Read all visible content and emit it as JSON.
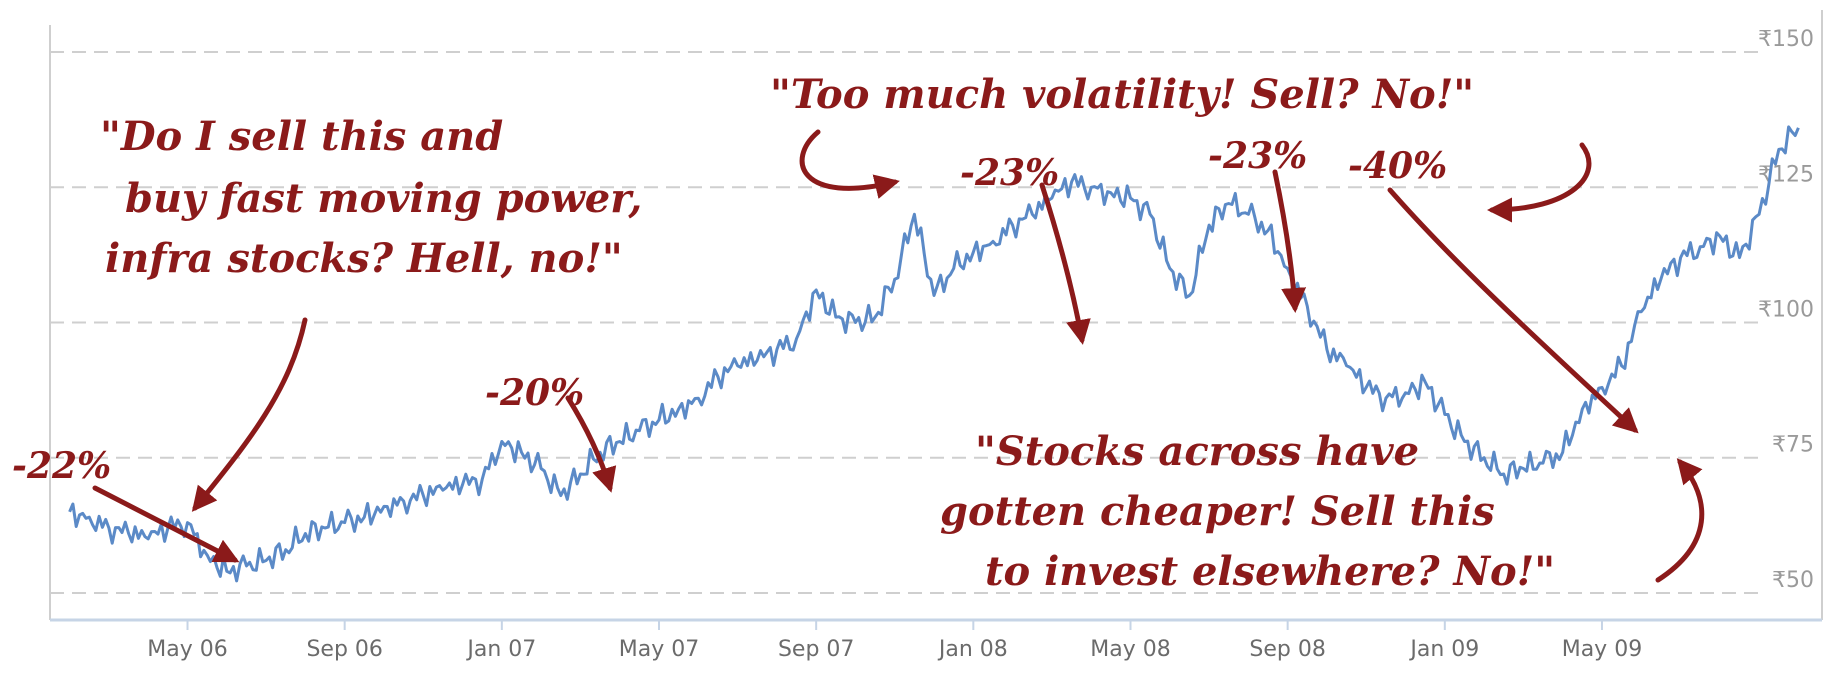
{
  "chart_data": {
    "type": "line",
    "title": "",
    "xlabel": "",
    "ylabel": "",
    "ylim": [
      45,
      155
    ],
    "y_ticks": [
      "₹50",
      "₹75",
      "₹100",
      "₹125",
      "₹150"
    ],
    "y_tick_values": [
      50,
      75,
      100,
      125,
      150
    ],
    "x_ticks": [
      "May 06",
      "Sep 06",
      "Jan 07",
      "May 07",
      "Sep 07",
      "Jan 08",
      "May 08",
      "Sep 08",
      "Jan 09",
      "May 09"
    ],
    "x_tick_months": [
      4,
      8,
      12,
      16,
      20,
      24,
      28,
      32,
      36,
      40
    ],
    "grid": "horizontal dashed",
    "line_color": "#5b8ac7",
    "annotation_color": "#8b1a1a",
    "series": [
      {
        "x_months": [
          1,
          1.5,
          2,
          2.5,
          3,
          3.5,
          4,
          4.5,
          5,
          5.5,
          6,
          6.5,
          7,
          7.5,
          8,
          8.5,
          9,
          9.5,
          10,
          10.5,
          11,
          11.5,
          12,
          12.5,
          13,
          13.5,
          14,
          14.5,
          15,
          15.5,
          16,
          16.5,
          17,
          17.5,
          18,
          18.5,
          19,
          19.5,
          20,
          20.5,
          21,
          21.5,
          22,
          22.5,
          23,
          23.5,
          24,
          24.5,
          25,
          25.5,
          26,
          26.5,
          27,
          27.5,
          28,
          28.5,
          29,
          29.5,
          30,
          30.5,
          31,
          31.5,
          32,
          32.5,
          33,
          33.5,
          34,
          34.5,
          35,
          35.5,
          36,
          36.5,
          37,
          37.5,
          38,
          38.5,
          39,
          39.5,
          40,
          40.5,
          41,
          41.5,
          42,
          42.5,
          43,
          43.5,
          44,
          44.5,
          45
        ],
        "values": [
          65,
          64,
          62,
          61,
          60,
          62,
          63,
          57,
          54,
          55,
          56,
          58,
          61,
          62,
          63,
          64,
          66,
          67,
          68,
          69,
          70,
          71,
          78,
          76,
          73,
          68,
          72,
          76,
          78,
          80,
          82,
          84,
          86,
          90,
          92,
          93,
          95,
          97,
          106,
          101,
          100,
          101,
          108,
          120,
          105,
          110,
          113,
          115,
          118,
          120,
          123,
          126,
          125,
          124,
          123,
          120,
          110,
          105,
          118,
          122,
          120,
          117,
          110,
          103,
          95,
          92,
          88,
          86,
          87,
          89,
          83,
          78,
          75,
          72,
          73,
          74,
          76,
          84,
          88,
          92,
          102,
          108,
          112,
          114,
          116,
          112,
          120,
          132,
          136
        ]
      }
    ],
    "annotations": [
      {
        "text": "-22%",
        "kind": "drawdown"
      },
      {
        "text": "-20%",
        "kind": "drawdown"
      },
      {
        "text": "-23%",
        "kind": "drawdown"
      },
      {
        "text": "-23%",
        "kind": "drawdown"
      },
      {
        "text": "-40%",
        "kind": "drawdown"
      },
      {
        "text_lines": [
          "\"Do I sell this and",
          "buy fast moving power,",
          "infra stocks? Hell, no!\""
        ],
        "kind": "note"
      },
      {
        "text_lines": [
          "\"Too much volatility! Sell? No!\""
        ],
        "kind": "note"
      },
      {
        "text_lines": [
          "\"Stocks across have",
          "gotten cheaper! Sell this",
          "to invest elsewhere? No!\""
        ],
        "kind": "note"
      }
    ]
  }
}
